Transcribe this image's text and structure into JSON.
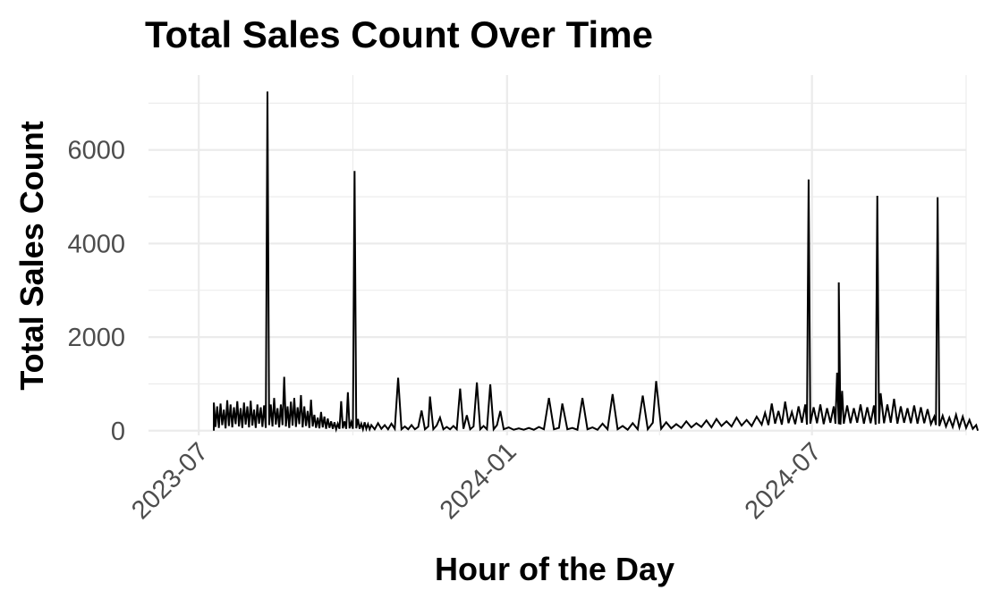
{
  "chart_data": {
    "type": "line",
    "title": "Total Sales Count Over Time",
    "xlabel": "Hour of the Day",
    "ylabel": "Total Sales Count",
    "x_ticks": [
      "2023-07-01",
      "2024-01-01",
      "2024-07-01"
    ],
    "x_tick_labels": [
      "2023-07",
      "2024-01",
      "2024-07"
    ],
    "y_ticks": [
      0,
      2000,
      4000,
      6000
    ],
    "y_tick_labels": [
      "0",
      "2000",
      "4000",
      "6000"
    ],
    "xlim": [
      "2023-06-01",
      "2024-10-01"
    ],
    "ylim": [
      -100,
      7600
    ],
    "grid": true,
    "line_color": "#000000",
    "series": [
      {
        "points": [
          [
            "2023-07-10",
            0
          ],
          [
            "2023-07-10",
            600
          ],
          [
            "2023-07-11",
            80
          ],
          [
            "2023-07-12",
            520
          ],
          [
            "2023-07-13",
            60
          ],
          [
            "2023-07-14",
            580
          ],
          [
            "2023-07-15",
            120
          ],
          [
            "2023-07-16",
            450
          ],
          [
            "2023-07-17",
            50
          ],
          [
            "2023-07-18",
            650
          ],
          [
            "2023-07-19",
            100
          ],
          [
            "2023-07-20",
            560
          ],
          [
            "2023-07-21",
            70
          ],
          [
            "2023-07-22",
            500
          ],
          [
            "2023-07-23",
            140
          ],
          [
            "2023-07-24",
            630
          ],
          [
            "2023-07-25",
            90
          ],
          [
            "2023-07-26",
            480
          ],
          [
            "2023-07-27",
            60
          ],
          [
            "2023-07-28",
            600
          ],
          [
            "2023-07-29",
            130
          ],
          [
            "2023-07-30",
            520
          ],
          [
            "2023-07-31",
            70
          ],
          [
            "2023-08-01",
            640
          ],
          [
            "2023-08-02",
            110
          ],
          [
            "2023-08-03",
            450
          ],
          [
            "2023-08-04",
            60
          ],
          [
            "2023-08-05",
            560
          ],
          [
            "2023-08-06",
            150
          ],
          [
            "2023-08-07",
            500
          ],
          [
            "2023-08-08",
            80
          ],
          [
            "2023-08-09",
            540
          ],
          [
            "2023-08-10",
            60
          ],
          [
            "2023-08-11",
            7250
          ],
          [
            "2023-08-12",
            120
          ],
          [
            "2023-08-13",
            560
          ],
          [
            "2023-08-14",
            90
          ],
          [
            "2023-08-15",
            700
          ],
          [
            "2023-08-16",
            130
          ],
          [
            "2023-08-17",
            480
          ],
          [
            "2023-08-18",
            70
          ],
          [
            "2023-08-19",
            560
          ],
          [
            "2023-08-20",
            120
          ],
          [
            "2023-08-21",
            1150
          ],
          [
            "2023-08-22",
            90
          ],
          [
            "2023-08-23",
            520
          ],
          [
            "2023-08-24",
            60
          ],
          [
            "2023-08-25",
            620
          ],
          [
            "2023-08-26",
            110
          ],
          [
            "2023-08-27",
            700
          ],
          [
            "2023-08-28",
            80
          ],
          [
            "2023-08-29",
            500
          ],
          [
            "2023-08-30",
            140
          ],
          [
            "2023-08-31",
            760
          ],
          [
            "2023-09-01",
            70
          ],
          [
            "2023-09-02",
            520
          ],
          [
            "2023-09-03",
            100
          ],
          [
            "2023-09-04",
            420
          ],
          [
            "2023-09-05",
            60
          ],
          [
            "2023-09-06",
            660
          ],
          [
            "2023-09-07",
            90
          ],
          [
            "2023-09-08",
            340
          ],
          [
            "2023-09-09",
            60
          ],
          [
            "2023-09-10",
            280
          ],
          [
            "2023-09-11",
            50
          ],
          [
            "2023-09-12",
            400
          ],
          [
            "2023-09-13",
            70
          ],
          [
            "2023-09-14",
            300
          ],
          [
            "2023-09-15",
            40
          ],
          [
            "2023-09-16",
            260
          ],
          [
            "2023-09-17",
            60
          ],
          [
            "2023-09-18",
            200
          ],
          [
            "2023-09-19",
            40
          ],
          [
            "2023-09-20",
            180
          ],
          [
            "2023-09-21",
            30
          ],
          [
            "2023-09-22",
            150
          ],
          [
            "2023-09-23",
            40
          ],
          [
            "2023-09-24",
            630
          ],
          [
            "2023-09-25",
            50
          ],
          [
            "2023-09-26",
            200
          ],
          [
            "2023-09-27",
            40
          ],
          [
            "2023-09-28",
            820
          ],
          [
            "2023-09-29",
            50
          ],
          [
            "2023-09-30",
            180
          ],
          [
            "2023-10-01",
            40
          ],
          [
            "2023-10-02",
            5550
          ],
          [
            "2023-10-03",
            50
          ],
          [
            "2023-10-04",
            250
          ],
          [
            "2023-10-05",
            40
          ],
          [
            "2023-10-06",
            150
          ],
          [
            "2023-10-07",
            30
          ],
          [
            "2023-10-08",
            180
          ],
          [
            "2023-10-09",
            40
          ],
          [
            "2023-10-10",
            140
          ],
          [
            "2023-10-11",
            30
          ],
          [
            "2023-10-12",
            120
          ],
          [
            "2023-10-14",
            30
          ],
          [
            "2023-10-16",
            160
          ],
          [
            "2023-10-18",
            40
          ],
          [
            "2023-10-20",
            120
          ],
          [
            "2023-10-22",
            30
          ],
          [
            "2023-10-24",
            150
          ],
          [
            "2023-10-26",
            40
          ],
          [
            "2023-10-28",
            1130
          ],
          [
            "2023-10-30",
            30
          ],
          [
            "2023-11-01",
            90
          ],
          [
            "2023-11-03",
            30
          ],
          [
            "2023-11-05",
            120
          ],
          [
            "2023-11-07",
            30
          ],
          [
            "2023-11-09",
            80
          ],
          [
            "2023-11-11",
            430
          ],
          [
            "2023-11-13",
            30
          ],
          [
            "2023-11-15",
            90
          ],
          [
            "2023-11-16",
            730
          ],
          [
            "2023-11-18",
            30
          ],
          [
            "2023-11-20",
            110
          ],
          [
            "2023-11-22",
            280
          ],
          [
            "2023-11-24",
            30
          ],
          [
            "2023-11-26",
            80
          ],
          [
            "2023-11-28",
            30
          ],
          [
            "2023-11-30",
            100
          ],
          [
            "2023-12-02",
            30
          ],
          [
            "2023-12-04",
            900
          ],
          [
            "2023-12-06",
            40
          ],
          [
            "2023-12-08",
            330
          ],
          [
            "2023-12-10",
            30
          ],
          [
            "2023-12-12",
            90
          ],
          [
            "2023-12-14",
            1030
          ],
          [
            "2023-12-16",
            30
          ],
          [
            "2023-12-18",
            100
          ],
          [
            "2023-12-20",
            30
          ],
          [
            "2023-12-22",
            990
          ],
          [
            "2023-12-24",
            30
          ],
          [
            "2023-12-26",
            120
          ],
          [
            "2023-12-28",
            420
          ],
          [
            "2023-12-30",
            30
          ],
          [
            "2024-01-02",
            70
          ],
          [
            "2024-01-05",
            20
          ],
          [
            "2024-01-08",
            50
          ],
          [
            "2024-01-11",
            20
          ],
          [
            "2024-01-14",
            60
          ],
          [
            "2024-01-17",
            20
          ],
          [
            "2024-01-20",
            80
          ],
          [
            "2024-01-23",
            30
          ],
          [
            "2024-01-26",
            700
          ],
          [
            "2024-01-29",
            30
          ],
          [
            "2024-02-01",
            60
          ],
          [
            "2024-02-03",
            580
          ],
          [
            "2024-02-06",
            30
          ],
          [
            "2024-02-09",
            60
          ],
          [
            "2024-02-12",
            20
          ],
          [
            "2024-02-15",
            700
          ],
          [
            "2024-02-18",
            30
          ],
          [
            "2024-02-21",
            70
          ],
          [
            "2024-02-24",
            20
          ],
          [
            "2024-02-27",
            150
          ],
          [
            "2024-03-01",
            30
          ],
          [
            "2024-03-04",
            780
          ],
          [
            "2024-03-07",
            30
          ],
          [
            "2024-03-10",
            100
          ],
          [
            "2024-03-13",
            20
          ],
          [
            "2024-03-16",
            160
          ],
          [
            "2024-03-19",
            30
          ],
          [
            "2024-03-22",
            750
          ],
          [
            "2024-03-25",
            30
          ],
          [
            "2024-03-28",
            170
          ],
          [
            "2024-03-30",
            1060
          ],
          [
            "2024-04-02",
            40
          ],
          [
            "2024-04-05",
            180
          ],
          [
            "2024-04-08",
            50
          ],
          [
            "2024-04-11",
            140
          ],
          [
            "2024-04-14",
            60
          ],
          [
            "2024-04-17",
            200
          ],
          [
            "2024-04-20",
            70
          ],
          [
            "2024-04-23",
            160
          ],
          [
            "2024-04-26",
            80
          ],
          [
            "2024-04-29",
            220
          ],
          [
            "2024-05-02",
            70
          ],
          [
            "2024-05-05",
            250
          ],
          [
            "2024-05-08",
            100
          ],
          [
            "2024-05-11",
            200
          ],
          [
            "2024-05-14",
            90
          ],
          [
            "2024-05-17",
            280
          ],
          [
            "2024-05-20",
            110
          ],
          [
            "2024-05-23",
            230
          ],
          [
            "2024-05-26",
            100
          ],
          [
            "2024-05-29",
            300
          ],
          [
            "2024-06-01",
            130
          ],
          [
            "2024-06-03",
            380
          ],
          [
            "2024-06-05",
            120
          ],
          [
            "2024-06-07",
            580
          ],
          [
            "2024-06-09",
            150
          ],
          [
            "2024-06-11",
            420
          ],
          [
            "2024-06-13",
            130
          ],
          [
            "2024-06-15",
            620
          ],
          [
            "2024-06-17",
            160
          ],
          [
            "2024-06-19",
            400
          ],
          [
            "2024-06-21",
            140
          ],
          [
            "2024-06-23",
            520
          ],
          [
            "2024-06-25",
            170
          ],
          [
            "2024-06-27",
            560
          ],
          [
            "2024-06-28",
            130
          ],
          [
            "2024-06-29",
            5370
          ],
          [
            "2024-06-30",
            150
          ],
          [
            "2024-07-02",
            500
          ],
          [
            "2024-07-04",
            160
          ],
          [
            "2024-07-06",
            560
          ],
          [
            "2024-07-08",
            140
          ],
          [
            "2024-07-10",
            480
          ],
          [
            "2024-07-12",
            170
          ],
          [
            "2024-07-14",
            520
          ],
          [
            "2024-07-15",
            150
          ],
          [
            "2024-07-16",
            1240
          ],
          [
            "2024-07-17",
            140
          ],
          [
            "2024-07-17",
            3170
          ],
          [
            "2024-07-18",
            130
          ],
          [
            "2024-07-19",
            850
          ],
          [
            "2024-07-20",
            150
          ],
          [
            "2024-07-22",
            540
          ],
          [
            "2024-07-24",
            160
          ],
          [
            "2024-07-26",
            480
          ],
          [
            "2024-07-28",
            170
          ],
          [
            "2024-07-30",
            560
          ],
          [
            "2024-08-01",
            150
          ],
          [
            "2024-08-03",
            500
          ],
          [
            "2024-08-05",
            160
          ],
          [
            "2024-08-07",
            540
          ],
          [
            "2024-08-08",
            130
          ],
          [
            "2024-08-09",
            5020
          ],
          [
            "2024-08-10",
            150
          ],
          [
            "2024-08-11",
            800
          ],
          [
            "2024-08-13",
            160
          ],
          [
            "2024-08-15",
            560
          ],
          [
            "2024-08-17",
            170
          ],
          [
            "2024-08-19",
            680
          ],
          [
            "2024-08-21",
            150
          ],
          [
            "2024-08-23",
            520
          ],
          [
            "2024-08-25",
            170
          ],
          [
            "2024-08-27",
            480
          ],
          [
            "2024-08-29",
            160
          ],
          [
            "2024-08-31",
            540
          ],
          [
            "2024-09-02",
            150
          ],
          [
            "2024-09-04",
            500
          ],
          [
            "2024-09-06",
            160
          ],
          [
            "2024-09-08",
            460
          ],
          [
            "2024-09-10",
            140
          ],
          [
            "2024-09-12",
            300
          ],
          [
            "2024-09-13",
            120
          ],
          [
            "2024-09-14",
            4990
          ],
          [
            "2024-09-15",
            100
          ],
          [
            "2024-09-17",
            320
          ],
          [
            "2024-09-19",
            90
          ],
          [
            "2024-09-21",
            280
          ],
          [
            "2024-09-23",
            80
          ],
          [
            "2024-09-25",
            340
          ],
          [
            "2024-09-27",
            70
          ],
          [
            "2024-09-29",
            300
          ],
          [
            "2024-10-01",
            60
          ],
          [
            "2024-10-03",
            230
          ],
          [
            "2024-10-05",
            40
          ],
          [
            "2024-10-07",
            120
          ],
          [
            "2024-10-08",
            0
          ]
        ]
      }
    ]
  }
}
